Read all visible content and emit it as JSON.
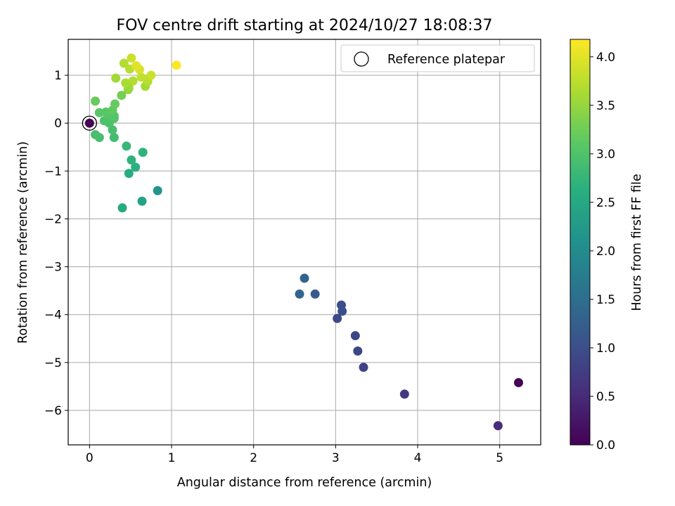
{
  "chart_data": {
    "type": "scatter",
    "title": "FOV centre drift starting at 2024/10/27 18:08:37",
    "xlabel": "Angular distance from reference (arcmin)",
    "ylabel": "Rotation from reference (arcmin)",
    "xlim": [
      -0.26,
      5.5
    ],
    "ylim": [
      -6.72,
      1.75
    ],
    "xticks": [
      0,
      1,
      2,
      3,
      4,
      5
    ],
    "yticks": [
      1,
      0,
      -1,
      -2,
      -3,
      -4,
      -5,
      -6
    ],
    "grid": true,
    "legend": {
      "location": "top-right",
      "entries": [
        "Reference platepar"
      ]
    },
    "colorbar": {
      "label": "Hours from first FF file",
      "range": [
        0.0,
        4.18
      ],
      "ticks": [
        "0.0",
        "0.5",
        "1.0",
        "1.5",
        "2.0",
        "2.5",
        "3.0",
        "3.5",
        "4.0"
      ],
      "colormap": "viridis"
    },
    "reference_point": {
      "x": 0.0,
      "y": 0.0
    },
    "points": [
      {
        "x": 0.0,
        "y": 0.0,
        "c": 0.0
      },
      {
        "x": 5.23,
        "y": -5.42,
        "c": 0.03
      },
      {
        "x": 4.98,
        "y": -6.32,
        "c": 0.55
      },
      {
        "x": 3.84,
        "y": -5.66,
        "c": 0.7
      },
      {
        "x": 3.34,
        "y": -5.1,
        "c": 0.85
      },
      {
        "x": 3.27,
        "y": -4.76,
        "c": 0.9
      },
      {
        "x": 3.24,
        "y": -4.44,
        "c": 0.9
      },
      {
        "x": 3.02,
        "y": -4.08,
        "c": 0.95
      },
      {
        "x": 3.08,
        "y": -3.93,
        "c": 1.0
      },
      {
        "x": 3.07,
        "y": -3.8,
        "c": 1.0
      },
      {
        "x": 2.75,
        "y": -3.57,
        "c": 1.2
      },
      {
        "x": 2.56,
        "y": -3.57,
        "c": 1.35
      },
      {
        "x": 2.62,
        "y": -3.24,
        "c": 1.35
      },
      {
        "x": 0.83,
        "y": -1.41,
        "c": 2.2
      },
      {
        "x": 0.64,
        "y": -1.63,
        "c": 2.45
      },
      {
        "x": 0.4,
        "y": -1.77,
        "c": 2.55
      },
      {
        "x": 0.48,
        "y": -1.05,
        "c": 2.6
      },
      {
        "x": 0.56,
        "y": -0.92,
        "c": 2.65
      },
      {
        "x": 0.51,
        "y": -0.77,
        "c": 2.7
      },
      {
        "x": 0.65,
        "y": -0.61,
        "c": 2.7
      },
      {
        "x": 0.45,
        "y": -0.48,
        "c": 2.8
      },
      {
        "x": 0.3,
        "y": -0.3,
        "c": 2.9
      },
      {
        "x": 0.12,
        "y": -0.3,
        "c": 2.95
      },
      {
        "x": 0.07,
        "y": -0.24,
        "c": 2.95
      },
      {
        "x": 0.28,
        "y": -0.14,
        "c": 2.95
      },
      {
        "x": 0.24,
        "y": 0.0,
        "c": 3.0
      },
      {
        "x": 0.18,
        "y": 0.05,
        "c": 3.0
      },
      {
        "x": 0.3,
        "y": 0.1,
        "c": 3.05
      },
      {
        "x": 0.3,
        "y": 0.15,
        "c": 3.05
      },
      {
        "x": 0.22,
        "y": 0.18,
        "c": 3.05
      },
      {
        "x": 0.2,
        "y": 0.23,
        "c": 3.1
      },
      {
        "x": 0.12,
        "y": 0.22,
        "c": 3.1
      },
      {
        "x": 0.28,
        "y": 0.27,
        "c": 3.15
      },
      {
        "x": 0.31,
        "y": 0.4,
        "c": 3.2
      },
      {
        "x": 0.07,
        "y": 0.46,
        "c": 3.2
      },
      {
        "x": 0.39,
        "y": 0.58,
        "c": 3.3
      },
      {
        "x": 0.47,
        "y": 0.7,
        "c": 3.5
      },
      {
        "x": 0.48,
        "y": 0.73,
        "c": 3.55
      },
      {
        "x": 0.68,
        "y": 0.77,
        "c": 3.6
      },
      {
        "x": 0.44,
        "y": 0.84,
        "c": 3.65
      },
      {
        "x": 0.53,
        "y": 0.88,
        "c": 3.7
      },
      {
        "x": 0.71,
        "y": 0.87,
        "c": 3.7
      },
      {
        "x": 0.7,
        "y": 0.91,
        "c": 3.75
      },
      {
        "x": 0.32,
        "y": 0.94,
        "c": 3.6
      },
      {
        "x": 0.63,
        "y": 0.96,
        "c": 3.8
      },
      {
        "x": 0.75,
        "y": 1.0,
        "c": 3.85
      },
      {
        "x": 0.49,
        "y": 1.13,
        "c": 3.75
      },
      {
        "x": 0.42,
        "y": 1.25,
        "c": 3.7
      },
      {
        "x": 0.61,
        "y": 1.12,
        "c": 3.95
      },
      {
        "x": 0.57,
        "y": 1.2,
        "c": 4.0
      },
      {
        "x": 0.51,
        "y": 1.36,
        "c": 3.85
      },
      {
        "x": 1.06,
        "y": 1.21,
        "c": 4.18
      }
    ]
  }
}
